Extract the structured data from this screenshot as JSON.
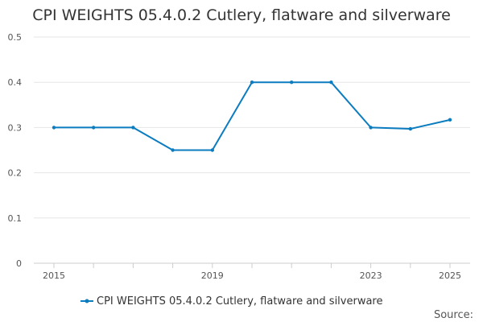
{
  "chart_data": {
    "type": "line",
    "title": "CPI WEIGHTS 05.4.0.2 Cutlery, flatware and silverware",
    "xlabel": "",
    "ylabel": "",
    "x": [
      2015,
      2016,
      2017,
      2018,
      2019,
      2020,
      2021,
      2022,
      2023,
      2024,
      2025
    ],
    "series": [
      {
        "name": "CPI WEIGHTS 05.4.0.2 Cutlery, flatware and silverware",
        "color": "#0b7cbf",
        "values": [
          0.3,
          0.3,
          0.3,
          0.25,
          0.25,
          0.4,
          0.4,
          0.4,
          0.3,
          0.297,
          0.317
        ]
      }
    ],
    "ylim": [
      0,
      0.5
    ],
    "xlim": [
      2015,
      2025
    ],
    "yticks": [
      0,
      0.1,
      0.2,
      0.3,
      0.4,
      0.5
    ],
    "yticklabels": [
      "0",
      "0.1",
      "0.2",
      "0.3",
      "0.4",
      "0.5"
    ],
    "xticks": [
      2015,
      2019,
      2023,
      2025
    ],
    "xticklabels": [
      "2015",
      "2019",
      "2023",
      "2025"
    ],
    "grid": true,
    "legend": "bottom-center",
    "source_label": "Source:"
  }
}
